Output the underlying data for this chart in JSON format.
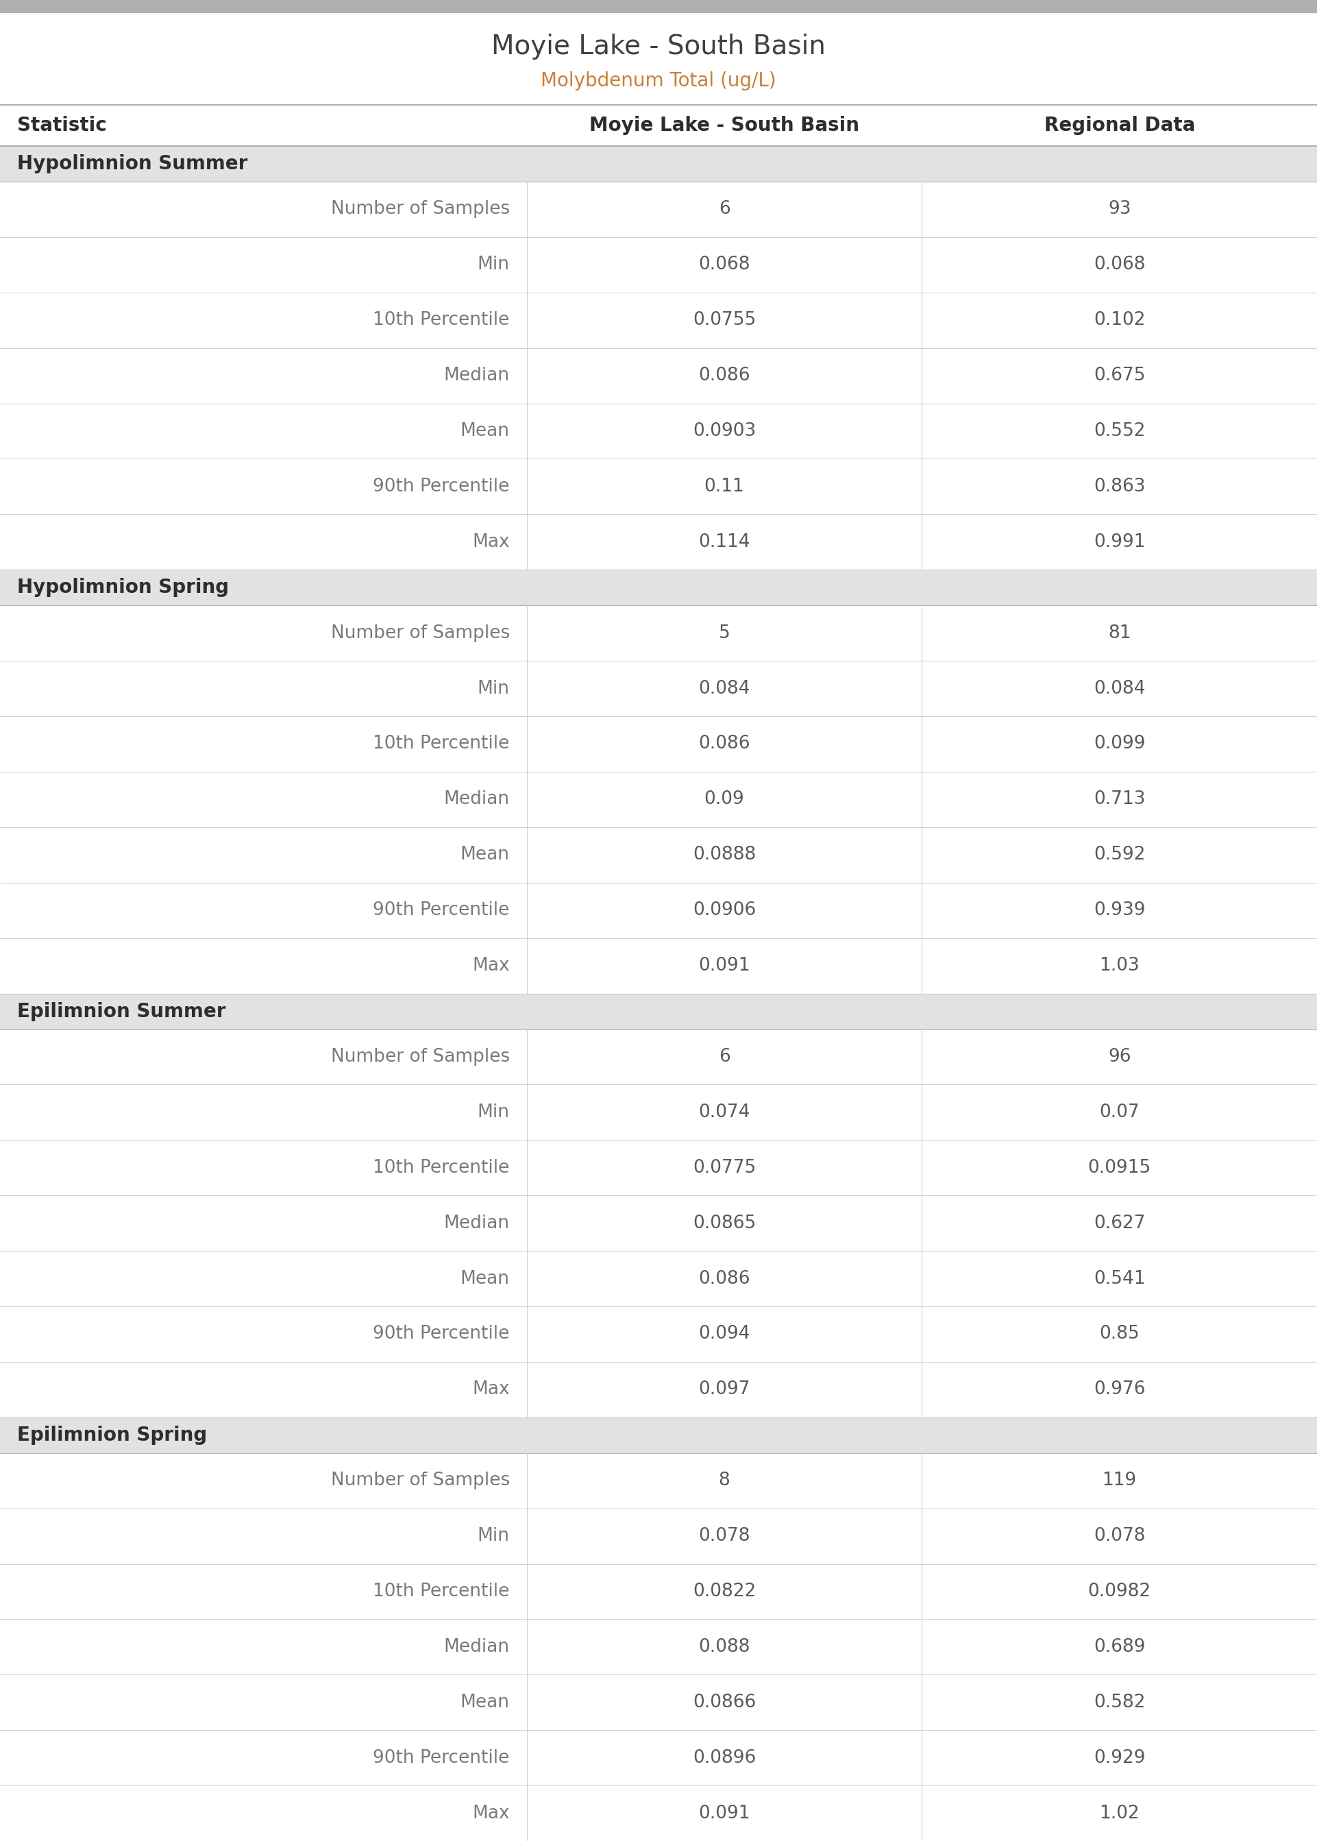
{
  "title": "Moyie Lake - South Basin",
  "subtitle": "Molybdenum Total (ug/L)",
  "title_color": "#404040",
  "subtitle_color": "#c8813a",
  "col_header_color": "#2d2d2d",
  "col_headers": [
    "Statistic",
    "Moyie Lake - South Basin",
    "Regional Data"
  ],
  "section_bg_color": "#e2e2e2",
  "section_text_color": "#2d2d2d",
  "data_value_color": "#5a5a5a",
  "stat_label_color": "#7a7a7a",
  "row_bg_white": "#ffffff",
  "divider_color": "#d0d0d0",
  "header_top_divider_color": "#b0b0b0",
  "header_bot_divider_color": "#b0b0b0",
  "top_bar_color": "#b0b0b0",
  "sections": [
    {
      "name": "Hypolimnion Summer",
      "rows": [
        [
          "Number of Samples",
          "6",
          "93"
        ],
        [
          "Min",
          "0.068",
          "0.068"
        ],
        [
          "10th Percentile",
          "0.0755",
          "0.102"
        ],
        [
          "Median",
          "0.086",
          "0.675"
        ],
        [
          "Mean",
          "0.0903",
          "0.552"
        ],
        [
          "90th Percentile",
          "0.11",
          "0.863"
        ],
        [
          "Max",
          "0.114",
          "0.991"
        ]
      ]
    },
    {
      "name": "Hypolimnion Spring",
      "rows": [
        [
          "Number of Samples",
          "5",
          "81"
        ],
        [
          "Min",
          "0.084",
          "0.084"
        ],
        [
          "10th Percentile",
          "0.086",
          "0.099"
        ],
        [
          "Median",
          "0.09",
          "0.713"
        ],
        [
          "Mean",
          "0.0888",
          "0.592"
        ],
        [
          "90th Percentile",
          "0.0906",
          "0.939"
        ],
        [
          "Max",
          "0.091",
          "1.03"
        ]
      ]
    },
    {
      "name": "Epilimnion Summer",
      "rows": [
        [
          "Number of Samples",
          "6",
          "96"
        ],
        [
          "Min",
          "0.074",
          "0.07"
        ],
        [
          "10th Percentile",
          "0.0775",
          "0.0915"
        ],
        [
          "Median",
          "0.0865",
          "0.627"
        ],
        [
          "Mean",
          "0.086",
          "0.541"
        ],
        [
          "90th Percentile",
          "0.094",
          "0.85"
        ],
        [
          "Max",
          "0.097",
          "0.976"
        ]
      ]
    },
    {
      "name": "Epilimnion Spring",
      "rows": [
        [
          "Number of Samples",
          "8",
          "119"
        ],
        [
          "Min",
          "0.078",
          "0.078"
        ],
        [
          "10th Percentile",
          "0.0822",
          "0.0982"
        ],
        [
          "Median",
          "0.088",
          "0.689"
        ],
        [
          "Mean",
          "0.0866",
          "0.582"
        ],
        [
          "90th Percentile",
          "0.0896",
          "0.929"
        ],
        [
          "Max",
          "0.091",
          "1.02"
        ]
      ]
    }
  ],
  "title_fontsize": 28,
  "subtitle_fontsize": 20,
  "header_fontsize": 20,
  "section_fontsize": 20,
  "data_fontsize": 19,
  "col_split1": 0.4,
  "col_split2": 0.7
}
